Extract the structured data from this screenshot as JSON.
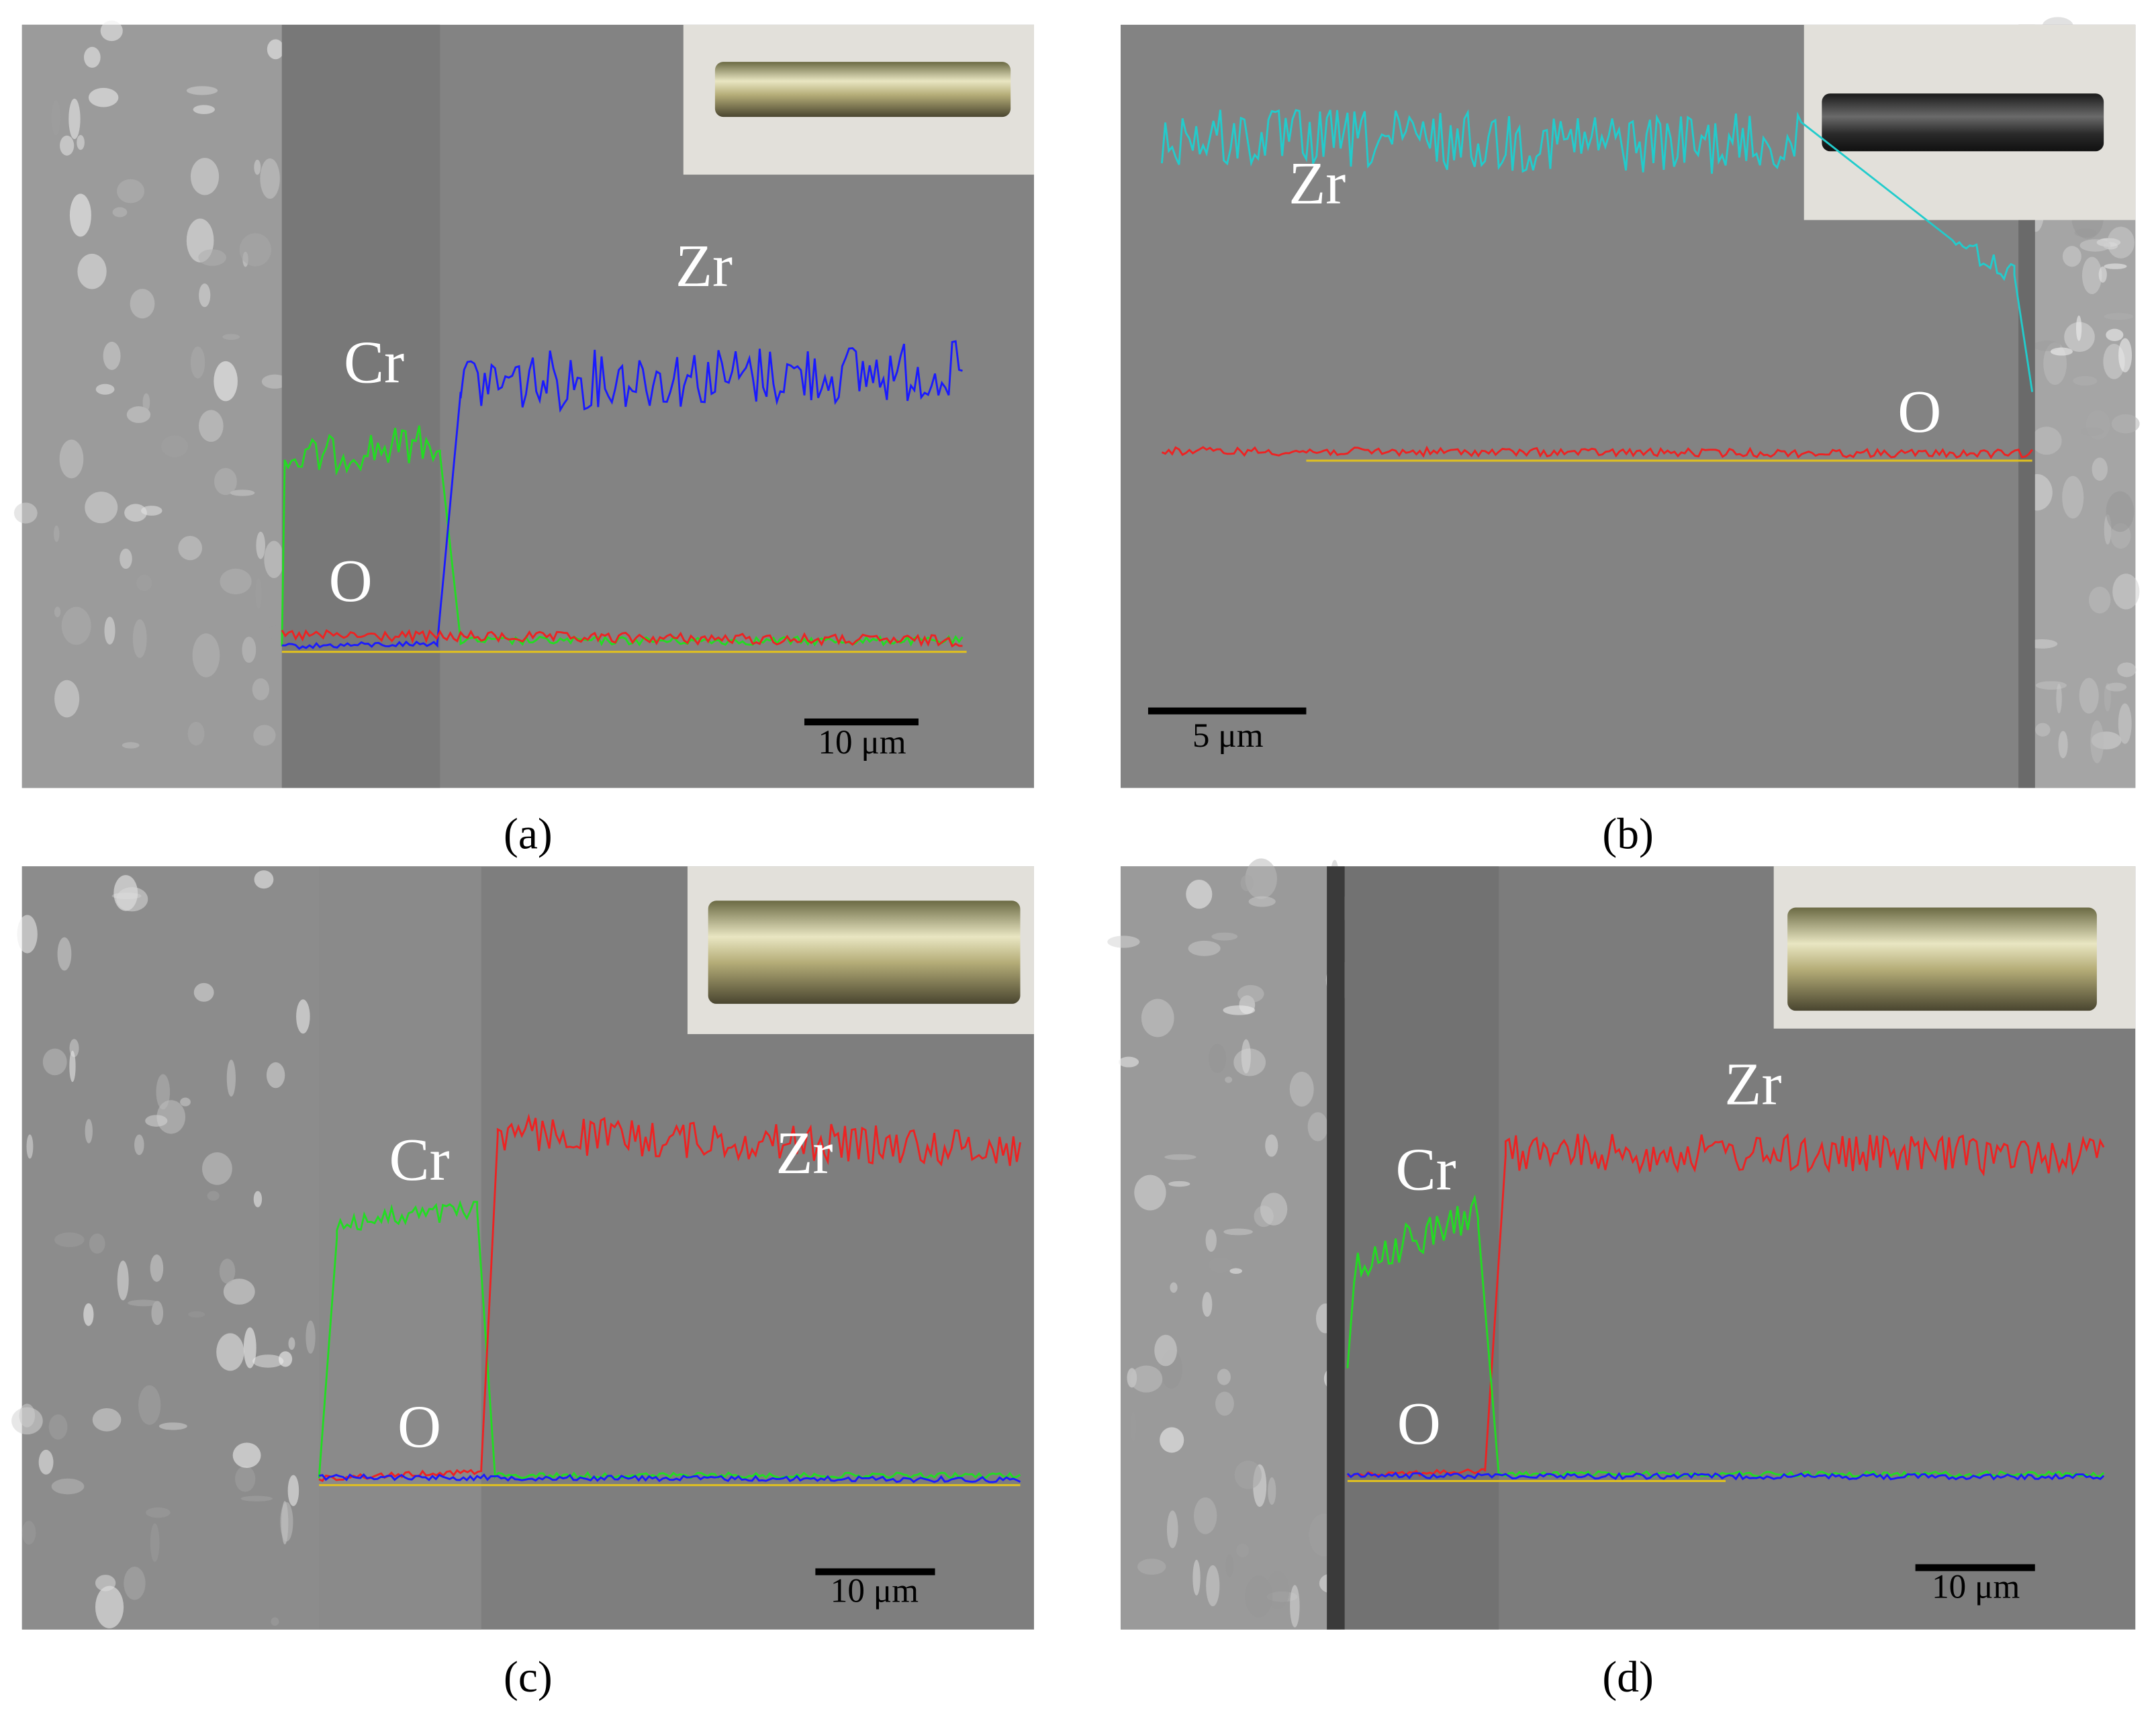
{
  "panels": [
    {
      "label": "(a)",
      "scale_bar": "10 μm",
      "profiles": [
        {
          "element": "Cr",
          "color": "#22dd22"
        },
        {
          "element": "Zr",
          "color": "#1a1aff"
        },
        {
          "element": "O",
          "color": "#ee2222"
        }
      ]
    },
    {
      "label": "(b)",
      "scale_bar": "5 μm",
      "profiles": [
        {
          "element": "Zr",
          "color": "#22cccc"
        },
        {
          "element": "O",
          "color": "#ee2222"
        }
      ]
    },
    {
      "label": "(c)",
      "scale_bar": "10 μm",
      "profiles": [
        {
          "element": "Cr",
          "color": "#22dd22"
        },
        {
          "element": "Zr",
          "color": "#ee2222"
        },
        {
          "element": "O",
          "color": "#1a1aff"
        }
      ]
    },
    {
      "label": "(d)",
      "scale_bar": "10 μm",
      "profiles": [
        {
          "element": "Zr",
          "color": "#ee2222"
        },
        {
          "element": "Cr",
          "color": "#22dd22"
        },
        {
          "element": "O",
          "color": "#1a1aff"
        }
      ]
    }
  ]
}
